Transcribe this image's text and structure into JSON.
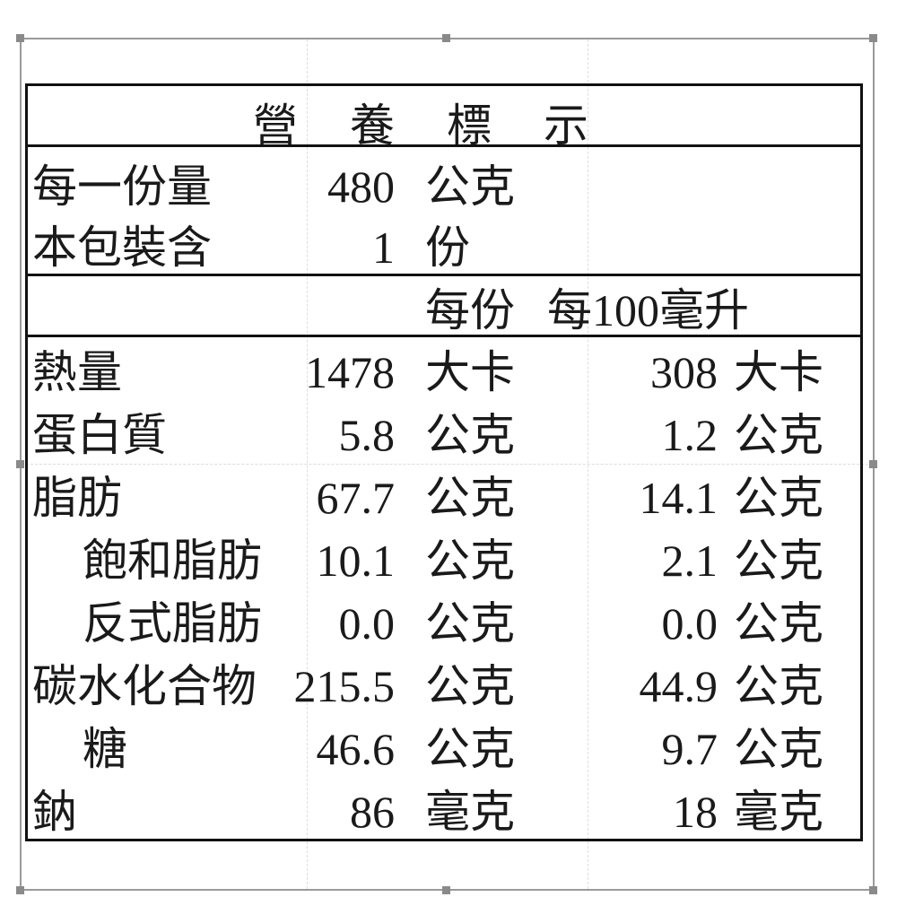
{
  "title_chars": [
    "營",
    "養",
    "標",
    "示"
  ],
  "serving": {
    "size_label": "每一份量",
    "size_value": "480",
    "size_unit": "公克",
    "count_label": "本包裝含",
    "count_value": "1",
    "count_unit": "份"
  },
  "columns": {
    "per_serving": "每份",
    "per_100": "每100毫升"
  },
  "rows": [
    {
      "label": "熱量",
      "v1": "1478",
      "u1": "大卡",
      "v2": "308",
      "u2": "大卡",
      "indent": false
    },
    {
      "label": "蛋白質",
      "v1": "5.8",
      "u1": "公克",
      "v2": "1.2",
      "u2": "公克",
      "indent": false
    },
    {
      "label": "脂肪",
      "v1": "67.7",
      "u1": "公克",
      "v2": "14.1",
      "u2": "公克",
      "indent": false
    },
    {
      "label": "飽和脂肪",
      "v1": "10.1",
      "u1": "公克",
      "v2": "2.1",
      "u2": "公克",
      "indent": true
    },
    {
      "label": "反式脂肪",
      "v1": "0.0",
      "u1": "公克",
      "v2": "0.0",
      "u2": "公克",
      "indent": true
    },
    {
      "label": "碳水化合物",
      "v1": "215.5",
      "u1": "公克",
      "v2": "44.9",
      "u2": "公克",
      "indent": false
    },
    {
      "label": "糖",
      "v1": "46.6",
      "u1": "公克",
      "v2": "9.7",
      "u2": "公克",
      "indent": true
    },
    {
      "label": "鈉",
      "v1": "86",
      "u1": "毫克",
      "v2": "18",
      "u2": "毫克",
      "indent": false
    }
  ]
}
